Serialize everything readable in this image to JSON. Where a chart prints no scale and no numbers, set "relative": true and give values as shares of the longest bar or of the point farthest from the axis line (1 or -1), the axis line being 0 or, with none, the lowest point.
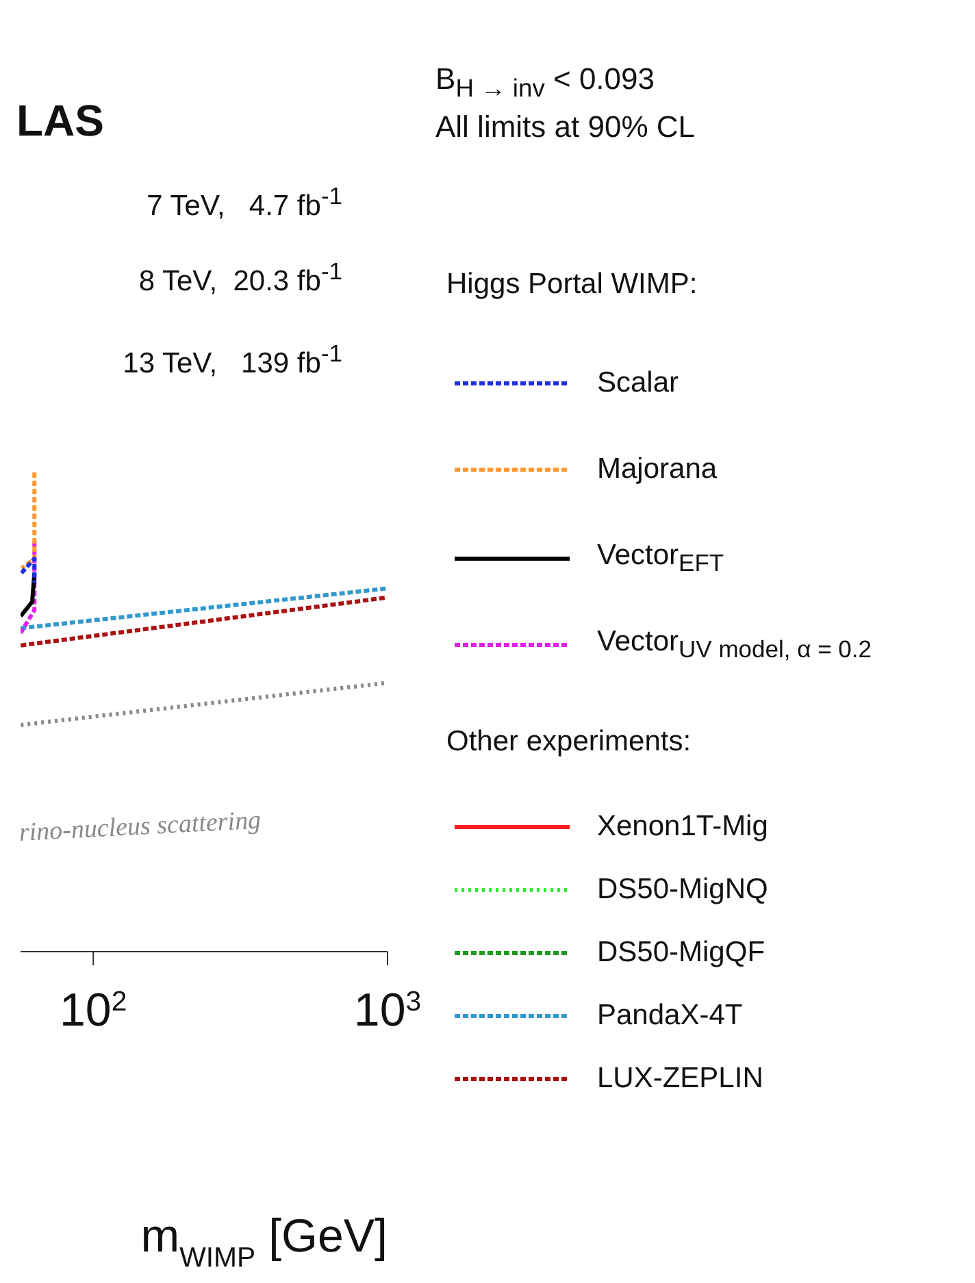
{
  "chart_data": {
    "type": "line",
    "title": "LAS",
    "xlabel": "m$_{WIMP}$ [GeV]",
    "relative": true,
    "log": "x",
    "xlim": [
      56.6,
      1000
    ],
    "xticks": [
      {
        "value": 100,
        "label": "10$^{2}$"
      },
      {
        "value": 1000,
        "label": "10$^{3}$"
      }
    ],
    "legend": "right",
    "grid": false,
    "annotations": [
      "7 TeV,   4.7 fb$^{-1}$",
      "8 TeV,  20.3 fb$^{-1}$",
      "13 TeV,   139 fb$^{-1}$",
      "B$_{H → inv}$ < 0.093",
      "All limits at 90% CL",
      "Higgs Portal WIMP:",
      "Other experiments:",
      "rino-nucleus scattering"
    ],
    "series": [
      {
        "name": "Scalar",
        "color": "#1f2fe0",
        "line_style": "dashed",
        "x": [
          57,
          63.1,
          63.1
        ],
        "values": [
          0.79,
          0.82,
          0.77
        ]
      },
      {
        "name": "Majorana",
        "color": "#ff9933",
        "line_style": "dashed",
        "x": [
          63.1,
          63.1,
          57
        ],
        "values": [
          1.0,
          0.82,
          0.8
        ]
      },
      {
        "name": "Vector$_{EFT}$",
        "color": "#000000",
        "line_style": "solid",
        "x": [
          63.1,
          62,
          56.7
        ],
        "values": [
          0.79,
          0.73,
          0.7
        ]
      },
      {
        "name": "Vector$_{UV model, α = 0.2}$",
        "color": "#dd22ee",
        "line_style": "dashed",
        "x": [
          63.1,
          63.1,
          56.7
        ],
        "values": [
          0.856,
          0.713,
          0.665
        ]
      },
      {
        "name": "Xenon1T-Mig",
        "color": "#ff2020",
        "line_style": "solid"
      },
      {
        "name": "DS50-MigNQ",
        "color": "#33ee33",
        "line_style": "dotted"
      },
      {
        "name": "DS50-MigQF",
        "color": "#229922",
        "line_style": "dashed"
      },
      {
        "name": "PandaX-4T",
        "color": "#3399cc",
        "line_style": "dashed",
        "x": [
          56.7,
          1000
        ],
        "values": [
          0.675,
          0.758
        ]
      },
      {
        "name": "LUX-ZEPLIN",
        "color": "#aa1111",
        "line_style": "dashed",
        "x": [
          56.7,
          1000
        ],
        "values": [
          0.639,
          0.739
        ]
      },
      {
        "color": "#888888",
        "line_style": "dotted",
        "x": [
          56.7,
          1000
        ],
        "values": [
          0.473,
          0.561
        ]
      }
    ]
  }
}
